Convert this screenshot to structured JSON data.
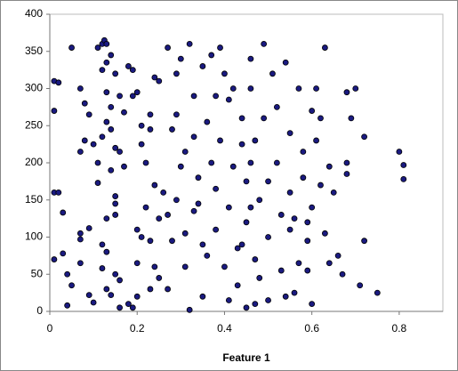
{
  "chart_data": {
    "type": "scatter",
    "x_label": "Feature 1",
    "color": "#1a1a80",
    "xlim": [
      0,
      0.9
    ],
    "xticks": [
      0,
      0.2,
      0.4,
      0.6,
      0.8
    ],
    "ylim": [
      0,
      400
    ],
    "yticks": [
      0,
      50,
      100,
      150,
      200,
      250,
      300,
      350,
      400
    ],
    "x": [
      0.01,
      0.02,
      0.01,
      0.01,
      0.02,
      0.03,
      0.01,
      0.03,
      0.04,
      0.05,
      0.04,
      0.05,
      0.07,
      0.08,
      0.07,
      0.09,
      0.08,
      0.1,
      0.07,
      0.07,
      0.07,
      0.09,
      0.09,
      0.1,
      0.11,
      0.11,
      0.11,
      0.12,
      0.125,
      0.13,
      0.14,
      0.13,
      0.15,
      0.12,
      0.13,
      0.14,
      0.13,
      0.14,
      0.12,
      0.15,
      0.16,
      0.14,
      0.15,
      0.15,
      0.15,
      0.13,
      0.12,
      0.13,
      0.12,
      0.13,
      0.14,
      0.15,
      0.16,
      0.16,
      0.16,
      0.17,
      0.17,
      0.18,
      0.19,
      0.18,
      0.19,
      0.2,
      0.2,
      0.21,
      0.19,
      0.2,
      0.21,
      0.22,
      0.21,
      0.2,
      0.22,
      0.23,
      0.24,
      0.23,
      0.24,
      0.23,
      0.24,
      0.23,
      0.25,
      0.25,
      0.25,
      0.26,
      0.27,
      0.27,
      0.27,
      0.28,
      0.28,
      0.29,
      0.29,
      0.29,
      0.3,
      0.31,
      0.3,
      0.31,
      0.31,
      0.32,
      0.32,
      0.33,
      0.33,
      0.34,
      0.34,
      0.35,
      0.35,
      0.35,
      0.36,
      0.37,
      0.37,
      0.38,
      0.38,
      0.38,
      0.39,
      0.39,
      0.4,
      0.4,
      0.41,
      0.41,
      0.41,
      0.36,
      0.33,
      0.42,
      0.42,
      0.43,
      0.43,
      0.44,
      0.44,
      0.45,
      0.45,
      0.45,
      0.46,
      0.46,
      0.46,
      0.47,
      0.47,
      0.48,
      0.48,
      0.49,
      0.49,
      0.5,
      0.5,
      0.5,
      0.47,
      0.44,
      0.46,
      0.51,
      0.52,
      0.52,
      0.53,
      0.53,
      0.54,
      0.55,
      0.55,
      0.55,
      0.56,
      0.57,
      0.57,
      0.58,
      0.58,
      0.59,
      0.59,
      0.6,
      0.6,
      0.6,
      0.54,
      0.56,
      0.59,
      0.61,
      0.62,
      0.62,
      0.63,
      0.63,
      0.64,
      0.64,
      0.65,
      0.66,
      0.67,
      0.68,
      0.68,
      0.68,
      0.69,
      0.7,
      0.61,
      0.72,
      0.72,
      0.71,
      0.75,
      0.8,
      0.81,
      0.81
    ],
    "y": [
      310,
      308,
      270,
      160,
      160,
      133,
      70,
      78,
      50,
      35,
      8,
      355,
      300,
      230,
      215,
      265,
      280,
      225,
      105,
      97,
      65,
      112,
      22,
      12,
      200,
      173,
      355,
      360,
      365,
      360,
      345,
      335,
      320,
      325,
      295,
      275,
      255,
      245,
      235,
      220,
      215,
      190,
      155,
      145,
      130,
      125,
      90,
      80,
      58,
      30,
      22,
      50,
      42,
      5,
      290,
      268,
      195,
      330,
      325,
      10,
      5,
      20,
      65,
      100,
      290,
      295,
      225,
      200,
      250,
      110,
      140,
      245,
      315,
      265,
      170,
      95,
      60,
      30,
      45,
      125,
      310,
      160,
      355,
      130,
      30,
      95,
      245,
      265,
      150,
      320,
      340,
      215,
      195,
      105,
      60,
      2,
      360,
      290,
      235,
      180,
      145,
      330,
      90,
      20,
      255,
      345,
      200,
      165,
      110,
      290,
      355,
      230,
      60,
      320,
      285,
      140,
      15,
      75,
      135,
      300,
      195,
      85,
      35,
      260,
      225,
      175,
      120,
      5,
      340,
      300,
      200,
      70,
      230,
      150,
      45,
      360,
      260,
      175,
      100,
      15,
      10,
      90,
      140,
      320,
      275,
      200,
      130,
      55,
      335,
      240,
      160,
      110,
      25,
      300,
      65,
      215,
      180,
      95,
      55,
      270,
      140,
      10,
      20,
      125,
      120,
      300,
      260,
      170,
      355,
      105,
      195,
      65,
      160,
      75,
      50,
      295,
      200,
      185,
      260,
      300,
      230,
      235,
      95,
      35,
      25,
      215,
      197,
      178
    ]
  }
}
